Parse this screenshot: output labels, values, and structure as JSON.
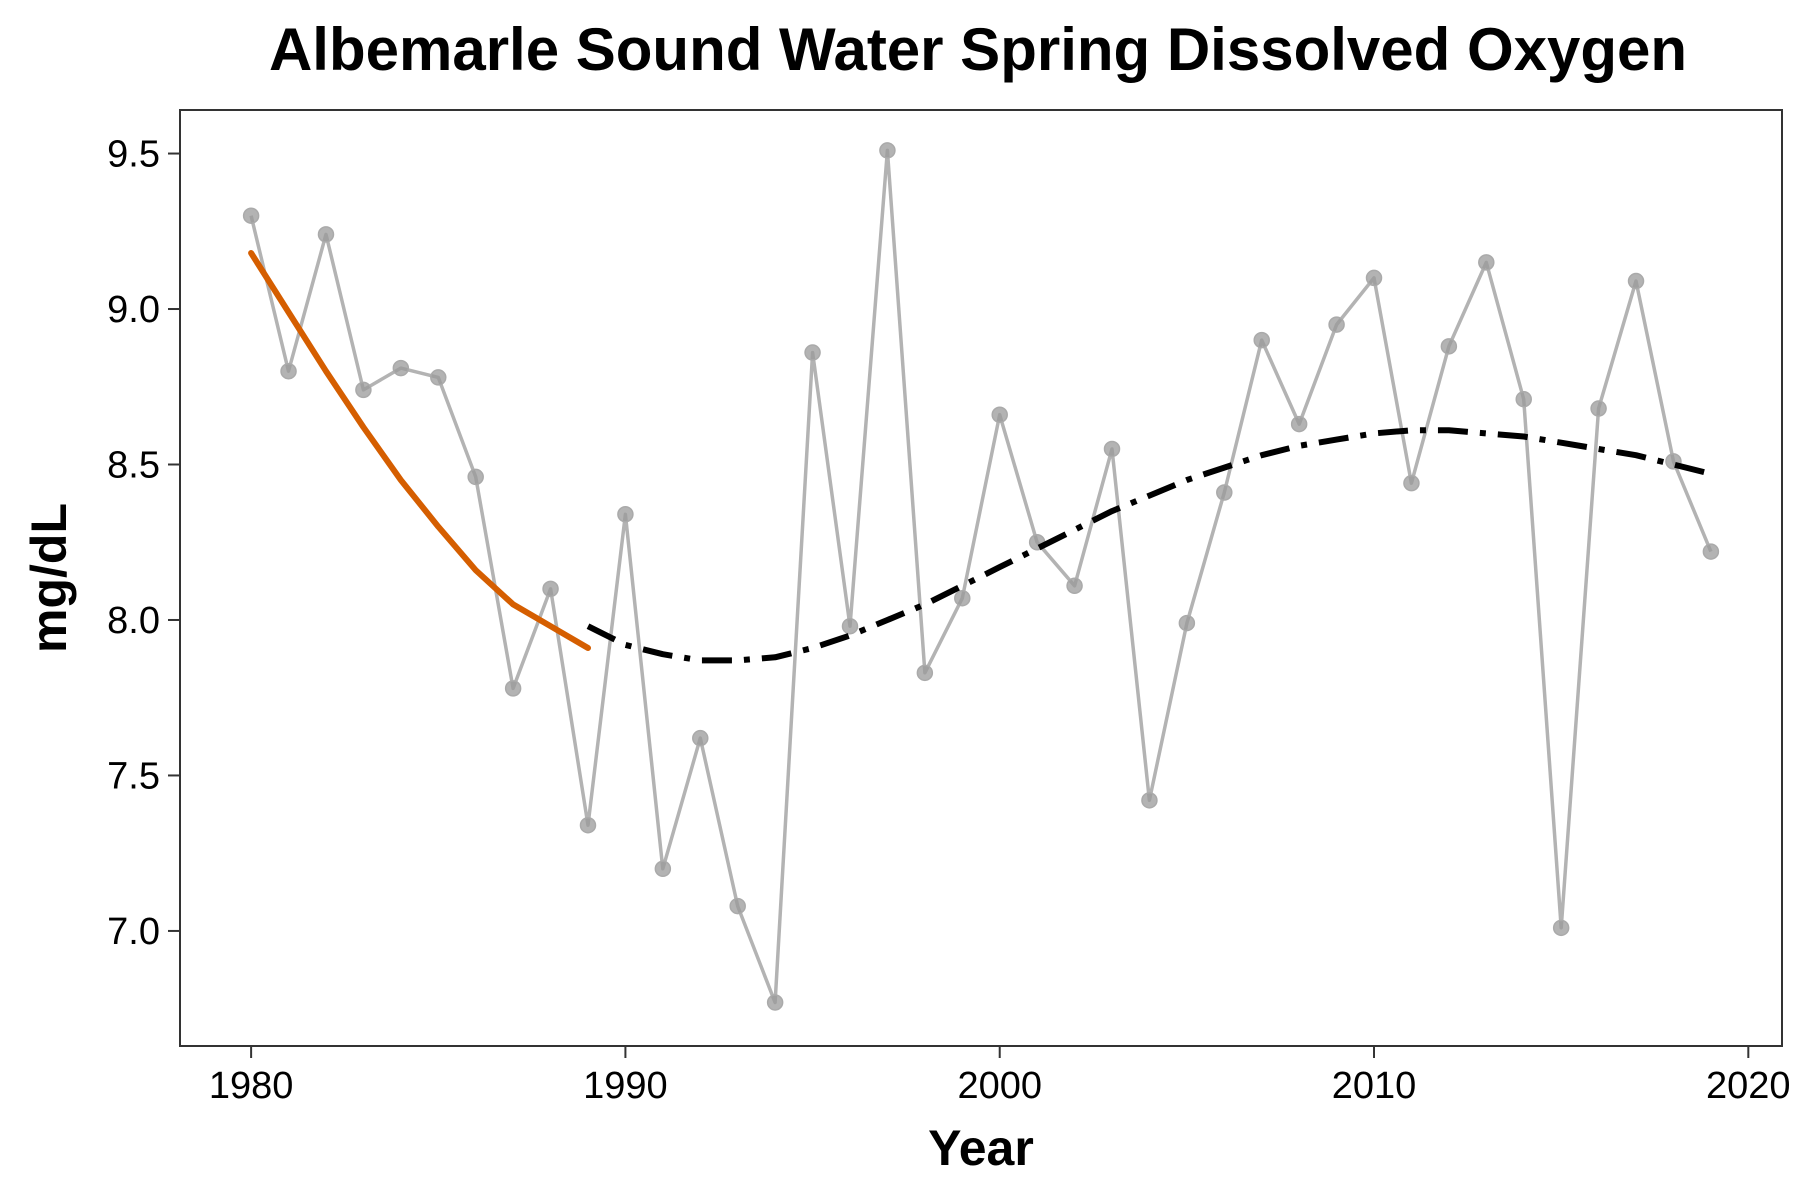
{
  "chart_data": {
    "type": "line",
    "title": "Albemarle Sound Water Spring Dissolved Oxygen",
    "xlabel": "Year",
    "ylabel": "mg/dL",
    "xlim": [
      1978.1,
      2020.9
    ],
    "ylim": [
      6.63,
      9.64
    ],
    "xticks": [
      1980,
      1990,
      2000,
      2010,
      2020
    ],
    "yticks": [
      7.0,
      7.5,
      8.0,
      8.5,
      9.0,
      9.5
    ],
    "grid": false,
    "legend": "none",
    "colors": {
      "observed": "#b3b3b3",
      "trend_declining": "#d55e00",
      "trend_fit": "#000000"
    },
    "series": [
      {
        "role": "observed",
        "x": [
          1980,
          1981,
          1982,
          1983,
          1984,
          1985,
          1986,
          1987,
          1988,
          1989,
          1990,
          1991,
          1992,
          1993,
          1994,
          1995,
          1996,
          1997,
          1998,
          1999,
          2000,
          2001,
          2002,
          2003,
          2004,
          2005,
          2006,
          2007,
          2008,
          2009,
          2010,
          2011,
          2012,
          2013,
          2014,
          2015,
          2016,
          2017,
          2018,
          2019
        ],
        "y": [
          9.3,
          8.8,
          9.24,
          8.74,
          8.81,
          8.78,
          8.46,
          7.78,
          8.1,
          7.34,
          8.34,
          7.2,
          7.62,
          7.08,
          6.77,
          8.86,
          7.98,
          9.51,
          7.83,
          8.07,
          8.66,
          8.25,
          8.11,
          8.55,
          7.42,
          7.99,
          8.41,
          8.9,
          8.63,
          8.95,
          9.1,
          8.44,
          8.88,
          9.15,
          8.71,
          7.01,
          8.68,
          9.09,
          8.51,
          8.22
        ]
      },
      {
        "role": "trend_declining",
        "x": [
          1980,
          1981,
          1982,
          1983,
          1984,
          1985,
          1986,
          1987,
          1988,
          1989
        ],
        "y": [
          9.18,
          8.99,
          8.8,
          8.62,
          8.45,
          8.3,
          8.16,
          8.05,
          7.98,
          7.91
        ]
      },
      {
        "role": "trend_fit",
        "x": [
          1989,
          1990,
          1991,
          1992,
          1993,
          1994,
          1995,
          1996,
          1997,
          1998,
          1999,
          2000,
          2001,
          2002,
          2003,
          2004,
          2005,
          2006,
          2007,
          2008,
          2009,
          2010,
          2011,
          2012,
          2013,
          2014,
          2015,
          2016,
          2017,
          2018,
          2019
        ],
        "y": [
          7.98,
          7.92,
          7.89,
          7.87,
          7.87,
          7.88,
          7.91,
          7.95,
          8.0,
          8.05,
          8.11,
          8.17,
          8.23,
          8.29,
          8.35,
          8.4,
          8.45,
          8.49,
          8.53,
          8.56,
          8.58,
          8.6,
          8.61,
          8.61,
          8.6,
          8.59,
          8.57,
          8.55,
          8.53,
          8.5,
          8.47
        ]
      }
    ]
  }
}
